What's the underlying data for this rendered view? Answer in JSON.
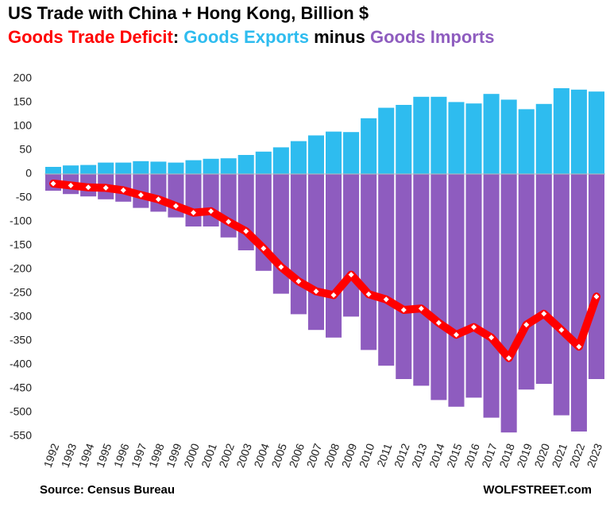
{
  "chart_data": {
    "type": "bar",
    "title": "US Trade with China + Hong Kong, Billion $",
    "subtitle": [
      {
        "text": "Goods Trade Deficit",
        "color": "#ff0000"
      },
      {
        "text": ": ",
        "color": "#000000"
      },
      {
        "text": "Goods Exports",
        "color": "#2ebcef"
      },
      {
        "text": " minus ",
        "color": "#000000"
      },
      {
        "text": "Goods Imports",
        "color": "#8e5cbf"
      }
    ],
    "source": "Source: Census Bureau",
    "credit": "WOLFSTREET.com",
    "categories": [
      "1992",
      "1993",
      "1994",
      "1995",
      "1996",
      "1997",
      "1998",
      "1999",
      "2000",
      "2001",
      "2002",
      "2003",
      "2004",
      "2005",
      "2006",
      "2007",
      "2008",
      "2009",
      "2010",
      "2011",
      "2012",
      "2013",
      "2014",
      "2015",
      "2016",
      "2017",
      "2018",
      "2019",
      "2020",
      "2021",
      "2022",
      "2023"
    ],
    "series": [
      {
        "name": "Goods Exports",
        "type": "bar",
        "color": "#2ebcef",
        "values": [
          15,
          18,
          19,
          24,
          24,
          27,
          26,
          24,
          29,
          32,
          33,
          40,
          47,
          56,
          69,
          81,
          89,
          88,
          117,
          139,
          145,
          162,
          162,
          151,
          148,
          168,
          156,
          136,
          147,
          180,
          177,
          173
        ]
      },
      {
        "name": "Goods Imports",
        "type": "bar",
        "color": "#8e5cbf",
        "values": [
          -35,
          -42,
          -47,
          -53,
          -58,
          -71,
          -79,
          -91,
          -110,
          -110,
          -133,
          -160,
          -203,
          -251,
          -294,
          -327,
          -343,
          -299,
          -369,
          -402,
          -430,
          -444,
          -474,
          -488,
          -469,
          -511,
          -542,
          -452,
          -440,
          -506,
          -540,
          -430
        ]
      },
      {
        "name": "Goods Trade Deficit",
        "type": "line",
        "color": "#ff0000",
        "values": [
          -20,
          -24,
          -28,
          -29,
          -34,
          -44,
          -53,
          -67,
          -81,
          -78,
          -100,
          -120,
          -156,
          -195,
          -225,
          -246,
          -254,
          -211,
          -252,
          -263,
          -285,
          -282,
          -312,
          -337,
          -321,
          -343,
          -386,
          -316,
          -293,
          -327,
          -362,
          -257
        ]
      }
    ],
    "ylim": [
      -550,
      200
    ],
    "yticks": [
      -550,
      -500,
      -450,
      -400,
      -350,
      -300,
      -250,
      -200,
      -150,
      -100,
      -50,
      0,
      50,
      100,
      150,
      200
    ],
    "grid": false
  }
}
